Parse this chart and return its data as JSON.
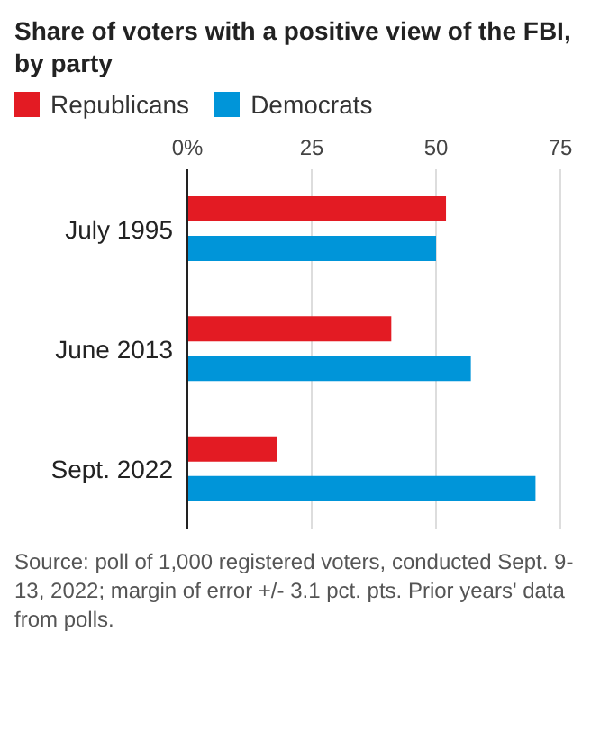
{
  "chart_data": {
    "type": "bar",
    "orientation": "horizontal",
    "title": "Share of voters with a positive view of the FBI, by party",
    "categories": [
      "July 1995",
      "June 2013",
      "Sept. 2022"
    ],
    "series": [
      {
        "name": "Republicans",
        "color": "#e31b23",
        "values": [
          52,
          41,
          18
        ]
      },
      {
        "name": "Democrats",
        "color": "#0095d9",
        "values": [
          50,
          57,
          70
        ]
      }
    ],
    "xlim": [
      0,
      75
    ],
    "xticks": [
      {
        "value": 0,
        "label": "0%"
      },
      25,
      50,
      75
    ],
    "grid": "x",
    "legend": "top left",
    "annotations": [
      "Source: poll of 1,000 registered voters, conducted Sept. 9-13, 2022; margin of error +/- 3.1 pct. pts. Prior years' data from polls."
    ]
  }
}
